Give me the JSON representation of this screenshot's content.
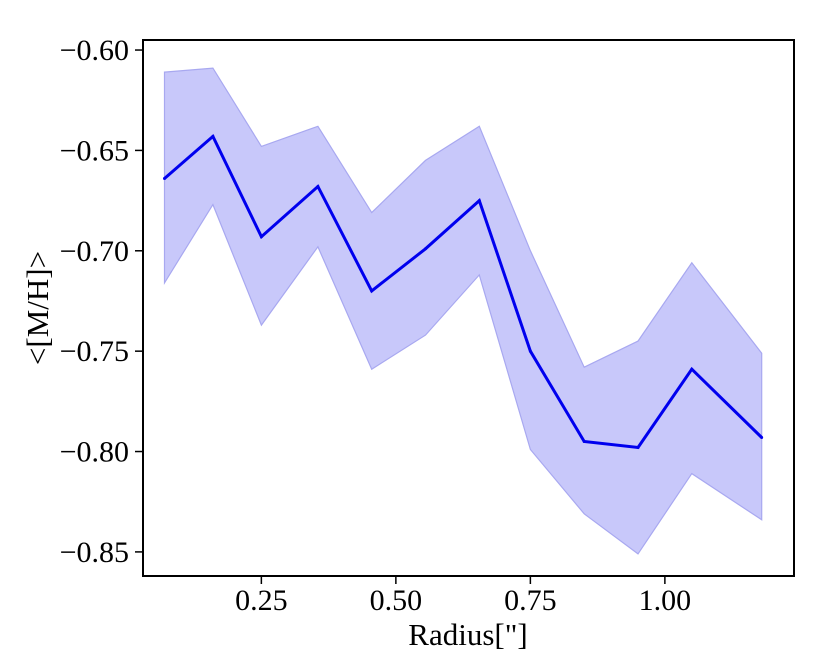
{
  "chart_data": {
    "type": "line",
    "title": "",
    "xlabel": "Radius[\"]",
    "ylabel": "<[M/H]>",
    "xlim": [
      0.03,
      1.24
    ],
    "ylim": [
      -0.862,
      -0.595
    ],
    "xticks": [
      0.25,
      0.5,
      0.75,
      1.0
    ],
    "xtick_labels": [
      "0.25",
      "0.50",
      "0.75",
      "1.00"
    ],
    "yticks": [
      -0.6,
      -0.65,
      -0.7,
      -0.75,
      -0.8,
      -0.85
    ],
    "ytick_labels": [
      "−0.60",
      "−0.65",
      "−0.70",
      "−0.75",
      "−0.80",
      "−0.85"
    ],
    "grid": false,
    "legend": "none",
    "series": [
      {
        "x": [
          0.07,
          0.16,
          0.25,
          0.355,
          0.455,
          0.555,
          0.655,
          0.75,
          0.85,
          0.95,
          1.05,
          1.18
        ],
        "y": [
          -0.664,
          -0.643,
          -0.693,
          -0.668,
          -0.72,
          -0.699,
          -0.675,
          -0.75,
          -0.795,
          -0.798,
          -0.759,
          -0.793
        ],
        "upper": [
          -0.611,
          -0.609,
          -0.648,
          -0.638,
          -0.681,
          -0.655,
          -0.638,
          -0.7,
          -0.758,
          -0.745,
          -0.706,
          -0.751
        ],
        "lower": [
          -0.716,
          -0.677,
          -0.737,
          -0.698,
          -0.759,
          -0.742,
          -0.712,
          -0.799,
          -0.831,
          -0.851,
          -0.811,
          -0.834
        ],
        "color": "#0000ee",
        "band_color": "#c8c8fa",
        "band_edge_color": "#a8a8f0"
      }
    ]
  }
}
